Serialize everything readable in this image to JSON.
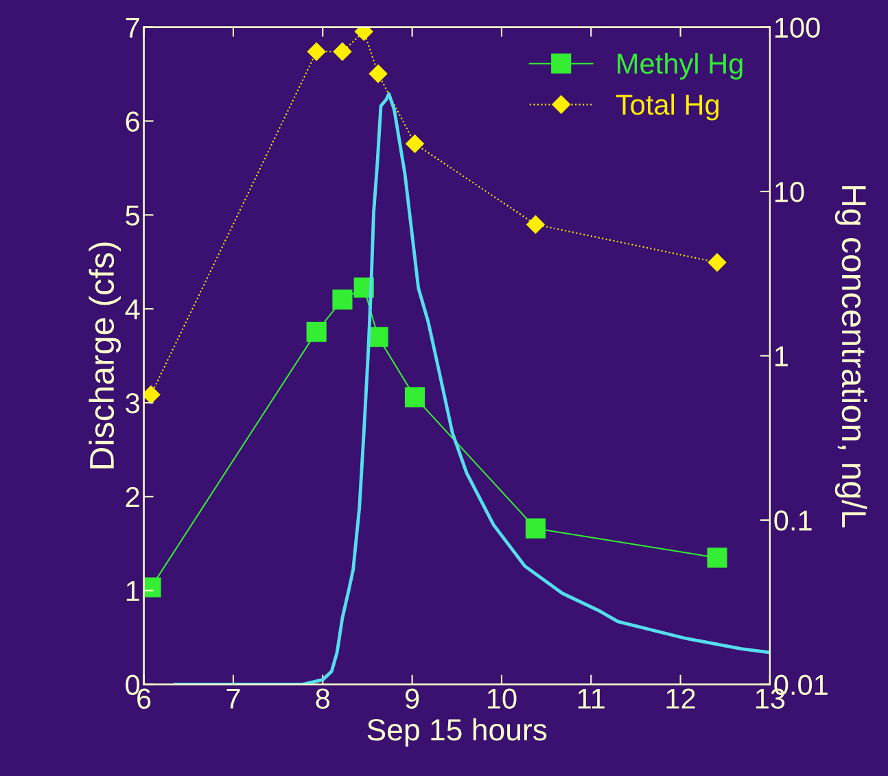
{
  "chart_data": {
    "type": "line",
    "xlabel": "Sep 15 hours",
    "ylabel": "Discharge (cfs)",
    "y2label": "Hg concentration, ng/L",
    "xlim": [
      6,
      13
    ],
    "xticks": [
      6,
      7,
      8,
      9,
      10,
      11,
      12,
      13
    ],
    "ylim": [
      0,
      7
    ],
    "yticks": [
      0,
      1,
      2,
      3,
      4,
      5,
      6,
      7
    ],
    "y2lim": [
      0.01,
      100
    ],
    "y2ticks": [
      0.01,
      0.1,
      1,
      10,
      100
    ],
    "log": "y2",
    "grid": false,
    "legend": "top right",
    "series": [
      {
        "color": "#55ddee",
        "axis": "y",
        "marker": "none",
        "line_style": "solid",
        "x": [
          6.35,
          7.77,
          8.0,
          8.1,
          8.16,
          8.22,
          8.29,
          8.34,
          8.41,
          8.46,
          8.51,
          8.54,
          8.57,
          8.61,
          8.65,
          8.71,
          8.74,
          8.8,
          8.92,
          9.07,
          9.18,
          9.3,
          9.45,
          9.61,
          9.91,
          10.26,
          10.68,
          11.1,
          11.3,
          12.06,
          12.68,
          13.0
        ],
        "values": [
          0,
          0,
          0.05,
          0.14,
          0.34,
          0.71,
          1.0,
          1.22,
          1.88,
          2.68,
          3.56,
          4.22,
          5.03,
          5.54,
          6.16,
          6.23,
          6.29,
          6.12,
          5.43,
          4.22,
          3.86,
          3.34,
          2.68,
          2.25,
          1.7,
          1.26,
          0.97,
          0.78,
          0.67,
          0.49,
          0.38,
          0.34
        ]
      },
      {
        "name": "Methyl Hg",
        "color": "#33ee33",
        "axis": "y2",
        "marker": "square",
        "line_style": "solid",
        "x": [
          6.08,
          7.93,
          8.22,
          8.46,
          8.62,
          9.03,
          10.38,
          12.41
        ],
        "values": [
          0.039,
          1.4,
          2.2,
          2.6,
          1.3,
          0.56,
          0.089,
          0.059
        ]
      },
      {
        "name": "Total Hg",
        "color": "#ffee00",
        "axis": "y2",
        "marker": "diamond",
        "line_style": "dotted",
        "x": [
          6.08,
          7.93,
          8.22,
          8.46,
          8.62,
          9.03,
          10.38,
          12.41
        ],
        "values": [
          0.58,
          71,
          71,
          94,
          52,
          19.5,
          6.3,
          3.7
        ]
      }
    ]
  }
}
